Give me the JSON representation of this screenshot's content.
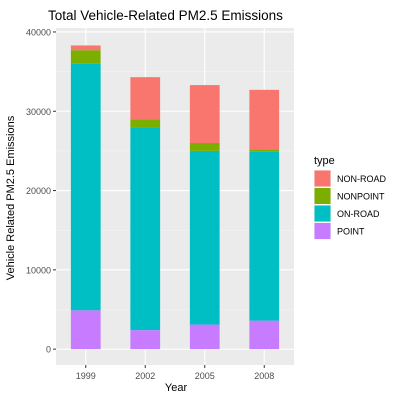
{
  "chart_data": {
    "type": "bar",
    "stacked": true,
    "title": "Total Vehicle-Related PM2.5 Emissions",
    "xlabel": "Year",
    "ylabel": "Vehicle Related PM2.5 Emissions",
    "categories": [
      "1999",
      "2002",
      "2005",
      "2008"
    ],
    "ylim": [
      0,
      40000
    ],
    "yticks": [
      0,
      10000,
      20000,
      30000,
      40000
    ],
    "ytick_labels": [
      "0",
      "10000",
      "20000",
      "30000",
      "40000"
    ],
    "grid": true,
    "legend_title": "type",
    "legend_position": "right",
    "series": [
      {
        "name": "POINT",
        "color": "#C77CFF",
        "values": [
          4900,
          2400,
          3100,
          3600
        ]
      },
      {
        "name": "ON-ROAD",
        "color": "#00BFC4",
        "values": [
          31100,
          25600,
          21900,
          21300
        ]
      },
      {
        "name": "NONPOINT",
        "color": "#7CAE00",
        "values": [
          1700,
          1000,
          1000,
          300
        ]
      },
      {
        "name": "NON-ROAD",
        "color": "#F8766D",
        "values": [
          600,
          5300,
          7300,
          7500
        ]
      }
    ],
    "legend_order": [
      "NON-ROAD",
      "NONPOINT",
      "ON-ROAD",
      "POINT"
    ]
  }
}
